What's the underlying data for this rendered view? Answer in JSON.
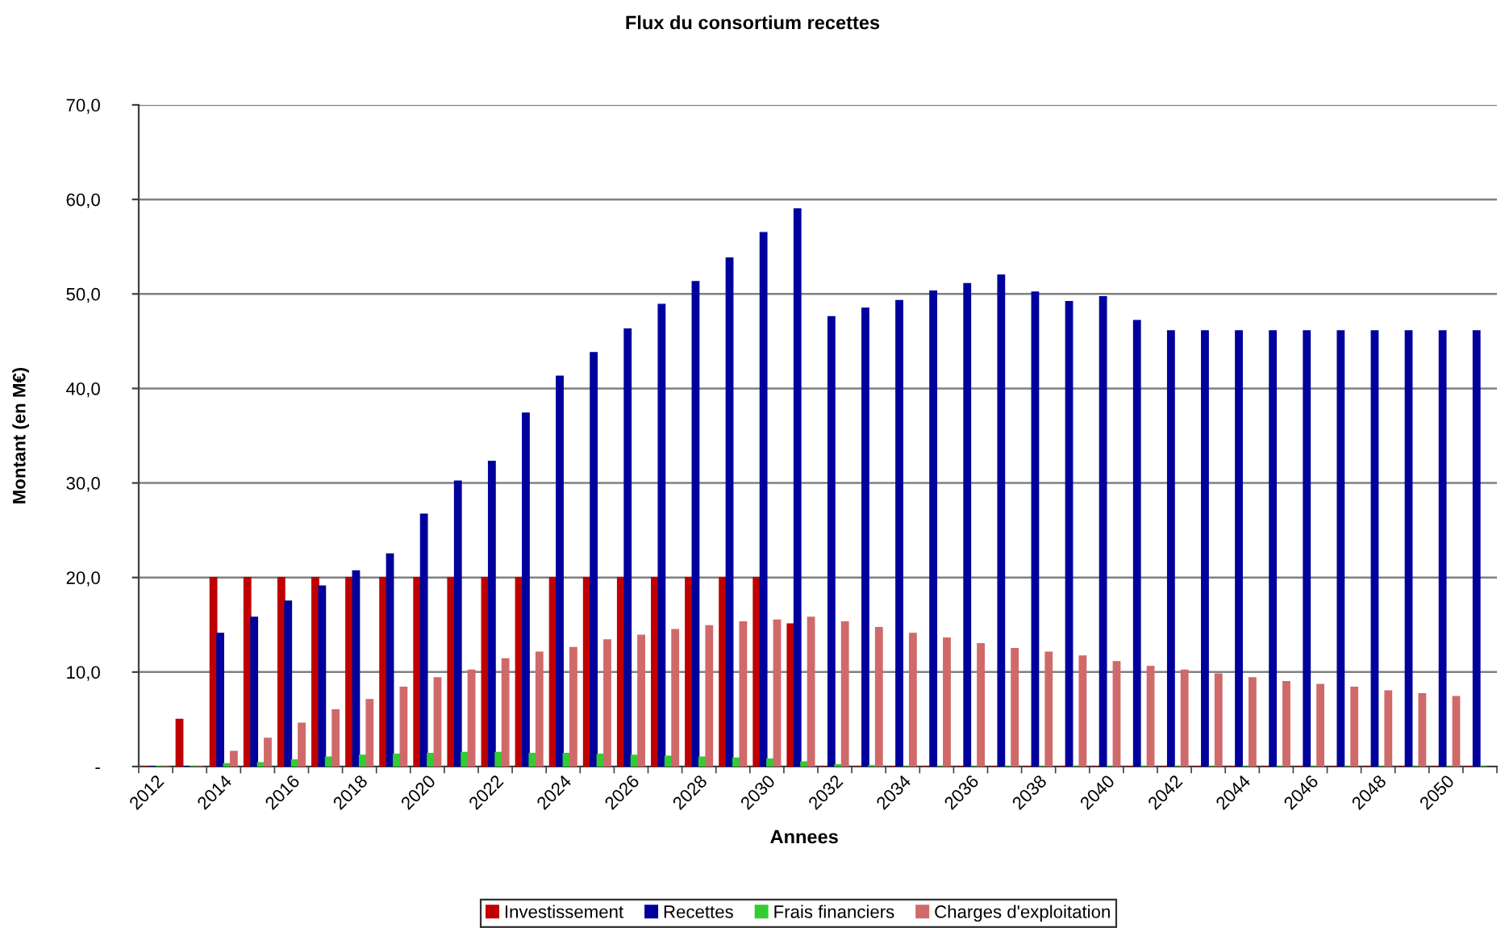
{
  "chart_data": {
    "type": "bar",
    "title": "Flux du consortium recettes",
    "xlabel": "Annees",
    "ylabel": "Montant (en M€)",
    "categories": [
      "2012",
      null,
      "2014",
      null,
      "2016",
      null,
      "2018",
      null,
      "2020",
      null,
      "2022",
      null,
      "2024",
      null,
      "2026",
      null,
      "2028",
      null,
      "2030",
      null,
      "2032",
      null,
      "2034",
      null,
      "2036",
      null,
      "2038",
      null,
      "2040",
      null,
      "2042",
      null,
      "2044",
      null,
      "2046",
      null,
      "2048",
      null,
      "2050",
      null
    ],
    "series": [
      {
        "name": "Investissement",
        "color": "#c00000",
        "values": [
          0,
          5,
          20,
          20,
          20,
          20,
          20,
          20,
          20,
          20,
          20,
          20,
          20,
          20,
          20,
          20,
          20,
          20,
          20,
          15.1,
          0,
          0,
          0,
          0,
          0,
          0,
          0,
          0,
          0,
          0,
          0,
          0,
          0,
          0,
          0,
          0,
          0,
          0,
          0,
          0
        ]
      },
      {
        "name": "Recettes",
        "color": "#00009c",
        "values": [
          0,
          0,
          14.1,
          15.8,
          17.5,
          19.1,
          20.7,
          22.5,
          26.7,
          30.2,
          32.3,
          37.4,
          41.3,
          43.8,
          46.3,
          48.9,
          51.3,
          53.8,
          56.5,
          59.0,
          47.6,
          48.5,
          49.3,
          50.3,
          51.1,
          52.0,
          50.2,
          49.2,
          49.7,
          47.2,
          46.1,
          46.1,
          46.1,
          46.1,
          46.1,
          46.1,
          46.1,
          46.1,
          46.1,
          46.1
        ]
      },
      {
        "name": "Frais financiers",
        "color": "#33cc33",
        "values": [
          0,
          0,
          0.3,
          0.4,
          0.7,
          1.0,
          1.2,
          1.3,
          1.4,
          1.5,
          1.5,
          1.4,
          1.4,
          1.3,
          1.2,
          1.1,
          1.0,
          0.9,
          0.8,
          0.5,
          0.2,
          0.1,
          0,
          0,
          0,
          0,
          0,
          0,
          0,
          0,
          0,
          0,
          0,
          0,
          0,
          0,
          0,
          0,
          0,
          0
        ]
      },
      {
        "name": "Charges d'exploitation",
        "color": "#d06a6a",
        "values": [
          0,
          0,
          1.6,
          3.0,
          4.6,
          6.0,
          7.1,
          8.4,
          9.4,
          10.2,
          11.4,
          12.1,
          12.6,
          13.4,
          13.9,
          14.5,
          14.9,
          15.3,
          15.5,
          15.8,
          15.3,
          14.7,
          14.1,
          13.6,
          13.0,
          12.5,
          12.1,
          11.7,
          11.1,
          10.6,
          10.2,
          9.8,
          9.4,
          9.0,
          8.7,
          8.4,
          8.0,
          7.7,
          7.4,
          null
        ]
      }
    ],
    "ylim": [
      0,
      70
    ],
    "yticks": [
      {
        "value": 0,
        "label": "-"
      },
      {
        "value": 10,
        "label": "10,0"
      },
      {
        "value": 20,
        "label": "20,0"
      },
      {
        "value": 30,
        "label": "30,0"
      },
      {
        "value": 40,
        "label": "40,0"
      },
      {
        "value": 50,
        "label": "50,0"
      },
      {
        "value": 60,
        "label": "60,0"
      },
      {
        "value": 70,
        "label": "70,0"
      }
    ],
    "grid": "y",
    "legend": "bottom"
  }
}
